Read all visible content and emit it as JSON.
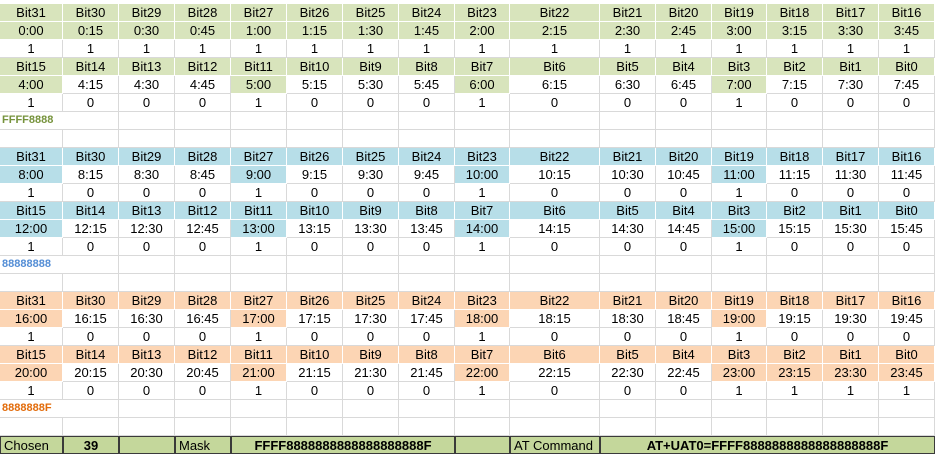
{
  "blocks": [
    {
      "rows": [
        {
          "bits": [
            "Bit31",
            "Bit30",
            "Bit29",
            "Bit28",
            "Bit27",
            "Bit26",
            "Bit25",
            "Bit24",
            "Bit23",
            "Bit22",
            "Bit21",
            "Bit20",
            "Bit19",
            "Bit18",
            "Bit17",
            "Bit16"
          ],
          "times": [
            "0:00",
            "0:15",
            "0:30",
            "0:45",
            "1:00",
            "1:15",
            "1:30",
            "1:45",
            "2:00",
            "2:15",
            "2:30",
            "2:45",
            "3:00",
            "3:15",
            "3:30",
            "3:45"
          ],
          "values": [
            1,
            1,
            1,
            1,
            1,
            1,
            1,
            1,
            1,
            1,
            1,
            1,
            1,
            1,
            1,
            1
          ]
        },
        {
          "bits": [
            "Bit15",
            "Bit14",
            "Bit13",
            "Bit12",
            "Bit11",
            "Bit10",
            "Bit9",
            "Bit8",
            "Bit7",
            "Bit6",
            "Bit5",
            "Bit4",
            "Bit3",
            "Bit2",
            "Bit1",
            "Bit0"
          ],
          "times": [
            "4:00",
            "4:15",
            "4:30",
            "4:45",
            "5:00",
            "5:15",
            "5:30",
            "5:45",
            "6:00",
            "6:15",
            "6:30",
            "6:45",
            "7:00",
            "7:15",
            "7:30",
            "7:45"
          ],
          "values": [
            1,
            0,
            0,
            0,
            1,
            0,
            0,
            0,
            1,
            0,
            0,
            0,
            1,
            0,
            0,
            0
          ]
        }
      ],
      "hex": "FFFF8888"
    },
    {
      "rows": [
        {
          "bits": [
            "Bit31",
            "Bit30",
            "Bit29",
            "Bit28",
            "Bit27",
            "Bit26",
            "Bit25",
            "Bit24",
            "Bit23",
            "Bit22",
            "Bit21",
            "Bit20",
            "Bit19",
            "Bit18",
            "Bit17",
            "Bit16"
          ],
          "times": [
            "8:00",
            "8:15",
            "8:30",
            "8:45",
            "9:00",
            "9:15",
            "9:30",
            "9:45",
            "10:00",
            "10:15",
            "10:30",
            "10:45",
            "11:00",
            "11:15",
            "11:30",
            "11:45"
          ],
          "values": [
            1,
            0,
            0,
            0,
            1,
            0,
            0,
            0,
            1,
            0,
            0,
            0,
            1,
            0,
            0,
            0
          ]
        },
        {
          "bits": [
            "Bit15",
            "Bit14",
            "Bit13",
            "Bit12",
            "Bit11",
            "Bit10",
            "Bit9",
            "Bit8",
            "Bit7",
            "Bit6",
            "Bit5",
            "Bit4",
            "Bit3",
            "Bit2",
            "Bit1",
            "Bit0"
          ],
          "times": [
            "12:00",
            "12:15",
            "12:30",
            "12:45",
            "13:00",
            "13:15",
            "13:30",
            "13:45",
            "14:00",
            "14:15",
            "14:30",
            "14:45",
            "15:00",
            "15:15",
            "15:30",
            "15:45"
          ],
          "values": [
            1,
            0,
            0,
            0,
            1,
            0,
            0,
            0,
            1,
            0,
            0,
            0,
            1,
            0,
            0,
            0
          ]
        }
      ],
      "hex": "88888888"
    },
    {
      "rows": [
        {
          "bits": [
            "Bit31",
            "Bit30",
            "Bit29",
            "Bit28",
            "Bit27",
            "Bit26",
            "Bit25",
            "Bit24",
            "Bit23",
            "Bit22",
            "Bit21",
            "Bit20",
            "Bit19",
            "Bit18",
            "Bit17",
            "Bit16"
          ],
          "times": [
            "16:00",
            "16:15",
            "16:30",
            "16:45",
            "17:00",
            "17:15",
            "17:30",
            "17:45",
            "18:00",
            "18:15",
            "18:30",
            "18:45",
            "19:00",
            "19:15",
            "19:30",
            "19:45"
          ],
          "values": [
            1,
            0,
            0,
            0,
            1,
            0,
            0,
            0,
            1,
            0,
            0,
            0,
            1,
            0,
            0,
            0
          ]
        },
        {
          "bits": [
            "Bit15",
            "Bit14",
            "Bit13",
            "Bit12",
            "Bit11",
            "Bit10",
            "Bit9",
            "Bit8",
            "Bit7",
            "Bit6",
            "Bit5",
            "Bit4",
            "Bit3",
            "Bit2",
            "Bit1",
            "Bit0"
          ],
          "times": [
            "20:00",
            "20:15",
            "20:30",
            "20:45",
            "21:00",
            "21:15",
            "21:30",
            "21:45",
            "22:00",
            "22:15",
            "22:30",
            "22:45",
            "23:00",
            "23:15",
            "23:30",
            "23:45"
          ],
          "values": [
            1,
            0,
            0,
            0,
            1,
            0,
            0,
            0,
            1,
            0,
            0,
            0,
            1,
            1,
            1,
            1
          ]
        }
      ],
      "hex": "8888888F"
    }
  ],
  "footer": {
    "chosen_label": "Chosen",
    "chosen_value": 39,
    "mask_label": "Mask",
    "mask_value": "FFFF8888888888888888888F",
    "at_label": "AT Command",
    "at_value": "AT+UAT0=FFFF8888888888888888888F"
  }
}
